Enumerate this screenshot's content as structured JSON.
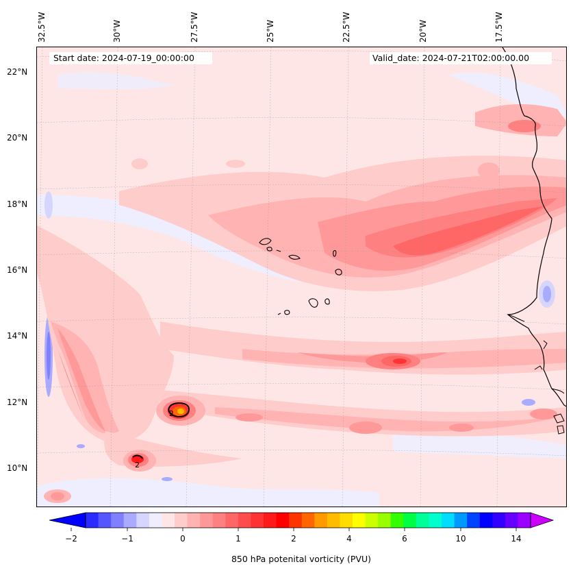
{
  "map": {
    "lon_labels": [
      "32.5°W",
      "30°W",
      "27.5°W",
      "25°W",
      "22.5°W",
      "20°W",
      "17.5°W"
    ],
    "lat_labels": [
      "22°N",
      "20°N",
      "18°N",
      "16°N",
      "14°N",
      "12°N",
      "10°N"
    ],
    "start_date": "Start date: 2024-07-19_00:00:00",
    "valid_date": "Valid_date: 2024-07-21T02:00:00.00",
    "contour_labels": [
      "2",
      "2"
    ]
  },
  "colorbar": {
    "title": "850 hPa potenital vorticity (PVU)",
    "tick_labels": [
      "−2",
      "−1",
      "0",
      "1",
      "2",
      "4",
      "6",
      "10",
      "14"
    ],
    "colors": [
      "#0000ff",
      "#2b2bff",
      "#5656ff",
      "#8080ff",
      "#aaaaff",
      "#d5d5ff",
      "#eeeeff",
      "#ffe6e6",
      "#ffcccc",
      "#ffb3b3",
      "#ff9999",
      "#ff8080",
      "#ff6666",
      "#ff4d4d",
      "#ff3333",
      "#ff1a1a",
      "#ff0000",
      "#ff3300",
      "#ff6600",
      "#ff9900",
      "#ffbb00",
      "#ffdd00",
      "#ffff00",
      "#ccff00",
      "#99ff00",
      "#33ff00",
      "#00ff44",
      "#00ff99",
      "#00ffcc",
      "#00ddff",
      "#0099ff",
      "#0044ff",
      "#0000ff",
      "#3300ff",
      "#6600ff",
      "#9900ff",
      "#cc00ff"
    ]
  }
}
